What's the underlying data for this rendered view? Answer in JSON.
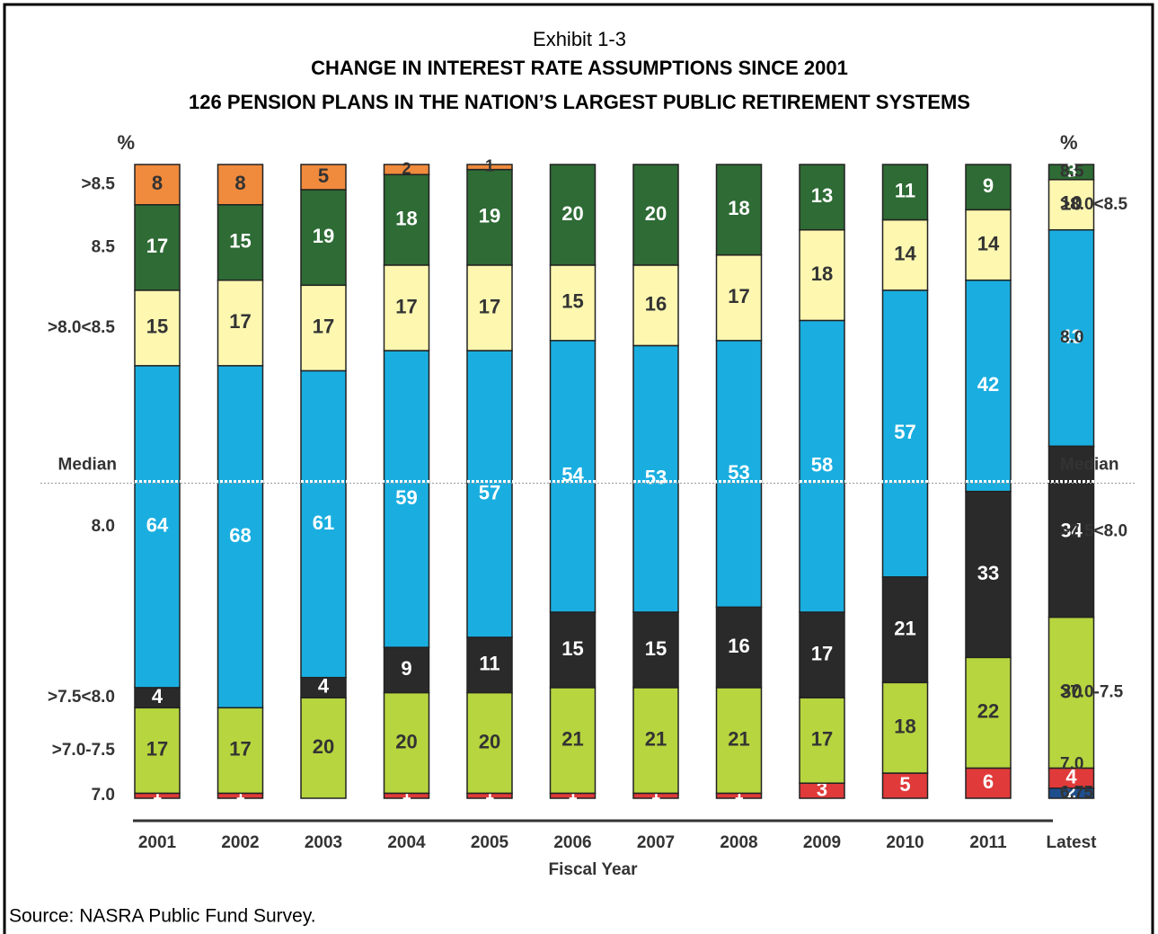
{
  "chart_data": {
    "type": "stacked_bar",
    "title": "Exhibit 1-3",
    "subtitle": [
      "CHANGE IN INTEREST RATE ASSUMPTIONS SINCE 2001",
      "126 PENSION PLANS IN THE NATION’S LARGEST PUBLIC RETIREMENT SYSTEMS"
    ],
    "unit_label": "%",
    "median_label": "Median",
    "x_label": "Fiscal Year",
    "source": "Source:  NASRA Public Fund Survey.",
    "categories": [
      "2001",
      "2002",
      "2003",
      "2004",
      "2005",
      "2006",
      "2007",
      "2008",
      "2009",
      "2010",
      "2011",
      "Latest"
    ],
    "series": [
      {
        "name": "6.75",
        "color": "#1f4e8c",
        "values": [
          0,
          0,
          0,
          0,
          0,
          0,
          0,
          0,
          0,
          0,
          0,
          2
        ]
      },
      {
        "name": "7.0",
        "color": "#e03a3a",
        "values": [
          1,
          1,
          0,
          1,
          1,
          1,
          1,
          1,
          3,
          5,
          6,
          4
        ]
      },
      {
        "name": ">7.0-7.5",
        "color": "#b7d53f",
        "values": [
          17,
          17,
          20,
          20,
          20,
          21,
          21,
          21,
          17,
          18,
          22,
          30
        ]
      },
      {
        "name": ">7.5<8.0",
        "color": "#2a2a2a",
        "values": [
          4,
          0,
          4,
          9,
          11,
          15,
          15,
          16,
          17,
          21,
          33,
          34
        ]
      },
      {
        "name": "8.0",
        "color": "#1aaee0",
        "values": [
          64,
          68,
          61,
          59,
          57,
          54,
          53,
          53,
          58,
          57,
          42,
          43
        ]
      },
      {
        "name": ">8.0<8.5",
        "color": "#fdf7b0",
        "values": [
          15,
          17,
          17,
          17,
          17,
          15,
          16,
          17,
          18,
          14,
          14,
          10
        ]
      },
      {
        "name": "8.5",
        "color": "#2e6b35",
        "values": [
          17,
          15,
          19,
          18,
          19,
          20,
          20,
          18,
          13,
          11,
          9,
          3
        ]
      },
      {
        "name": ">8.5",
        "color": "#f08a3c",
        "values": [
          8,
          8,
          5,
          2,
          1,
          0,
          0,
          0,
          0,
          0,
          0,
          0
        ]
      }
    ]
  }
}
